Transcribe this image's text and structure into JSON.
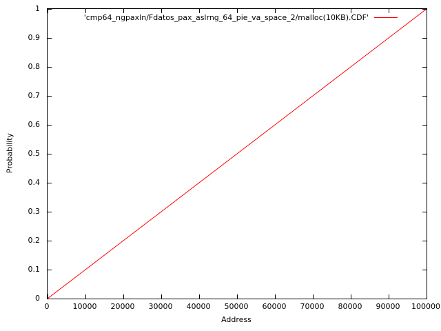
{
  "figure": {
    "background": "#ffffff",
    "border_color": "#000000",
    "text_color": "#000000"
  },
  "chart_data": {
    "type": "line",
    "title": "",
    "xlabel": "Address",
    "ylabel": "Probability",
    "xlim": [
      0,
      100000
    ],
    "ylim": [
      0,
      1
    ],
    "grid": false,
    "legend_position": "top-right-inside",
    "x_ticks": [
      0,
      10000,
      20000,
      30000,
      40000,
      50000,
      60000,
      70000,
      80000,
      90000,
      100000
    ],
    "x_tick_labels": [
      "0",
      "10000",
      "20000",
      "30000",
      "40000",
      "50000",
      "60000",
      "70000",
      "80000",
      "90000",
      "100000"
    ],
    "y_ticks": [
      0,
      0.1,
      0.2,
      0.3,
      0.4,
      0.5,
      0.6,
      0.7,
      0.8,
      0.9,
      1
    ],
    "y_tick_labels": [
      "0",
      "0.1",
      "0.2",
      "0.3",
      "0.4",
      "0.5",
      "0.6",
      "0.7",
      "0.8",
      "0.9",
      "1"
    ],
    "series": [
      {
        "name": "'cmp64_ngpaxln/Fdatos_pax_aslrng_64_pie_va_space_2/malloc(10KB).CDF'",
        "color": "#ff0000",
        "x": [
          0,
          10000,
          20000,
          30000,
          40000,
          50000,
          60000,
          70000,
          80000,
          90000,
          100000
        ],
        "y": [
          0,
          0.1,
          0.2,
          0.3,
          0.4,
          0.5,
          0.6,
          0.7,
          0.8,
          0.9,
          1
        ]
      }
    ]
  }
}
